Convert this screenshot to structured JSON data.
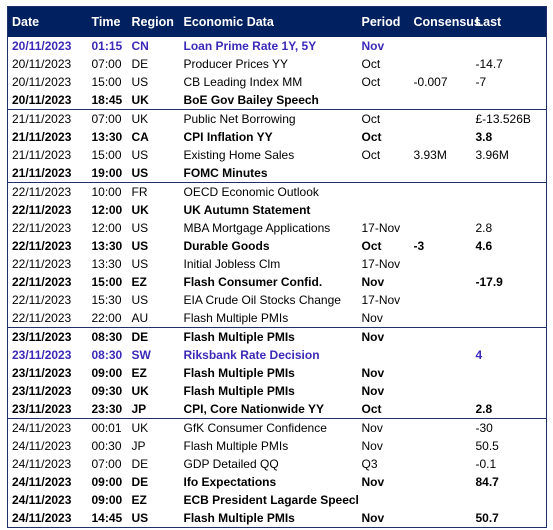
{
  "columns": [
    "Date",
    "Time",
    "Region",
    "Economic Data",
    "Period",
    "Consensus",
    "Last"
  ],
  "rows": [
    {
      "date": "20/11/2023",
      "time": "01:15",
      "region": "CN",
      "data": "Loan Prime Rate 1Y, 5Y",
      "period": "Nov",
      "consensus": "",
      "last": "",
      "style": "cb",
      "sep": false
    },
    {
      "date": "20/11/2023",
      "time": "07:00",
      "region": "DE",
      "data": "Producer Prices YY",
      "period": "Oct",
      "consensus": "",
      "last": "-14.7",
      "style": "",
      "sep": false
    },
    {
      "date": "20/11/2023",
      "time": "15:00",
      "region": "US",
      "data": "CB Leading Index MM",
      "period": "Oct",
      "consensus": "-0.007",
      "last": "-7",
      "style": "",
      "sep": false
    },
    {
      "date": "20/11/2023",
      "time": "18:45",
      "region": "UK",
      "data": "BoE Gov Bailey Speech",
      "period": "",
      "consensus": "",
      "last": "",
      "style": "bold",
      "sep": true
    },
    {
      "date": "21/11/2023",
      "time": "07:00",
      "region": "UK",
      "data": "Public Net Borrowing",
      "period": "Oct",
      "consensus": "",
      "last": "£-13.526B",
      "style": "",
      "sep": false
    },
    {
      "date": "21/11/2023",
      "time": "13:30",
      "region": "CA",
      "data": "CPI Inflation YY",
      "period": "Oct",
      "consensus": "",
      "last": "3.8",
      "style": "bold",
      "sep": false
    },
    {
      "date": "21/11/2023",
      "time": "15:00",
      "region": "US",
      "data": "Existing Home Sales",
      "period": "Oct",
      "consensus": "3.93M",
      "last": "3.96M",
      "style": "",
      "sep": false
    },
    {
      "date": "21/11/2023",
      "time": "19:00",
      "region": "US",
      "data": "FOMC Minutes",
      "period": "",
      "consensus": "",
      "last": "",
      "style": "bold",
      "sep": true
    },
    {
      "date": "22/11/2023",
      "time": "10:00",
      "region": "FR",
      "data": "OECD Economic Outlook",
      "period": "",
      "consensus": "",
      "last": "",
      "style": "",
      "sep": false
    },
    {
      "date": "22/11/2023",
      "time": "12:00",
      "region": "UK",
      "data": "UK Autumn Statement",
      "period": "",
      "consensus": "",
      "last": "",
      "style": "bold",
      "sep": false
    },
    {
      "date": "22/11/2023",
      "time": "12:00",
      "region": "US",
      "data": "MBA Mortgage Applications",
      "period": "17-Nov",
      "consensus": "",
      "last": "2.8",
      "style": "",
      "sep": false
    },
    {
      "date": "22/11/2023",
      "time": "13:30",
      "region": "US",
      "data": "Durable Goods",
      "period": "Oct",
      "consensus": "-3",
      "last": "4.6",
      "style": "bold",
      "sep": false
    },
    {
      "date": "22/11/2023",
      "time": "13:30",
      "region": "US",
      "data": "Initial Jobless Clm",
      "period": "17-Nov",
      "consensus": "",
      "last": "",
      "style": "",
      "sep": false
    },
    {
      "date": "22/11/2023",
      "time": "15:00",
      "region": "EZ",
      "data": "Flash Consumer Confid.",
      "period": "Nov",
      "consensus": "",
      "last": "-17.9",
      "style": "bold",
      "sep": false
    },
    {
      "date": "22/11/2023",
      "time": "15:30",
      "region": "US",
      "data": "EIA Crude Oil Stocks Change",
      "period": "17-Nov",
      "consensus": "",
      "last": "",
      "style": "",
      "sep": false
    },
    {
      "date": "22/11/2023",
      "time": "22:00",
      "region": "AU",
      "data": "Flash Multiple PMIs",
      "period": "Nov",
      "consensus": "",
      "last": "",
      "style": "",
      "sep": true
    },
    {
      "date": "23/11/2023",
      "time": "08:30",
      "region": "DE",
      "data": "Flash Multiple PMIs",
      "period": "Nov",
      "consensus": "",
      "last": "",
      "style": "bold",
      "sep": false
    },
    {
      "date": "23/11/2023",
      "time": "08:30",
      "region": "SW",
      "data": "Riksbank Rate Decision",
      "period": "",
      "consensus": "",
      "last": "4",
      "style": "cb",
      "sep": false
    },
    {
      "date": "23/11/2023",
      "time": "09:00",
      "region": "EZ",
      "data": "Flash Multiple PMIs",
      "period": "Nov",
      "consensus": "",
      "last": "",
      "style": "bold",
      "sep": false
    },
    {
      "date": "23/11/2023",
      "time": "09:30",
      "region": "UK",
      "data": "Flash Multiple PMIs",
      "period": "Nov",
      "consensus": "",
      "last": "",
      "style": "bold",
      "sep": false
    },
    {
      "date": "23/11/2023",
      "time": "23:30",
      "region": "JP",
      "data": "CPI, Core Nationwide YY",
      "period": "Oct",
      "consensus": "",
      "last": "2.8",
      "style": "bold",
      "sep": true
    },
    {
      "date": "24/11/2023",
      "time": "00:01",
      "region": "UK",
      "data": "GfK Consumer Confidence",
      "period": "Nov",
      "consensus": "",
      "last": "-30",
      "style": "",
      "sep": false
    },
    {
      "date": "24/11/2023",
      "time": "00:30",
      "region": "JP",
      "data": "Flash Multiple PMIs",
      "period": "Nov",
      "consensus": "",
      "last": "50.5",
      "style": "",
      "sep": false
    },
    {
      "date": "24/11/2023",
      "time": "07:00",
      "region": "DE",
      "data": "GDP Detailed QQ",
      "period": "Q3",
      "consensus": "",
      "last": "-0.1",
      "style": "",
      "sep": false
    },
    {
      "date": "24/11/2023",
      "time": "09:00",
      "region": "DE",
      "data": "Ifo Expectations",
      "period": "Nov",
      "consensus": "",
      "last": "84.7",
      "style": "bold",
      "sep": false
    },
    {
      "date": "24/11/2023",
      "time": "09:00",
      "region": "EZ",
      "data": "ECB President Lagarde Speech",
      "period": "",
      "consensus": "",
      "last": "",
      "style": "bold",
      "sep": false
    },
    {
      "date": "24/11/2023",
      "time": "14:45",
      "region": "US",
      "data": "Flash Multiple PMIs",
      "period": "Nov",
      "consensus": "",
      "last": "50.7",
      "style": "bold",
      "sep": false
    }
  ],
  "colors": {
    "header_bg": "#002060",
    "header_text": "#ffffff",
    "central_bank_text": "#3b2ab8",
    "border": "#1f2f6a"
  }
}
